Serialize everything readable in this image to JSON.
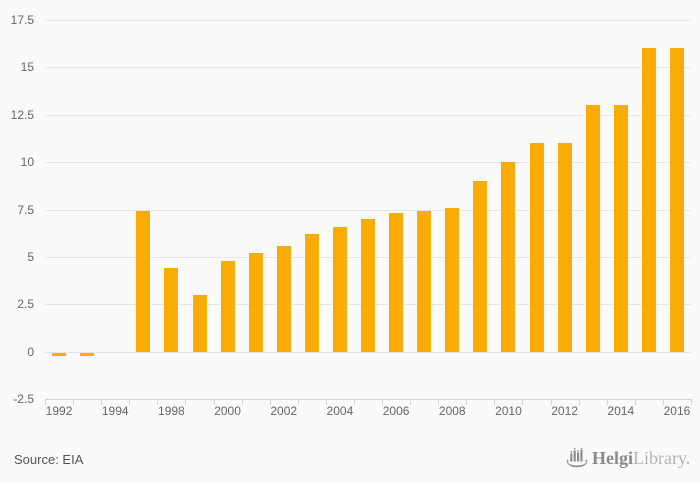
{
  "chart_data": {
    "type": "bar",
    "title": "",
    "categories": [
      "1992",
      "1993",
      "1994",
      "1995",
      "1998",
      "1999",
      "2000",
      "2001",
      "2002",
      "2003",
      "2004",
      "2005",
      "2006",
      "2007",
      "2008",
      "2009",
      "2010",
      "2011",
      "2012",
      "2013",
      "2014",
      "2015",
      "2016"
    ],
    "values": [
      -0.1,
      -0.1,
      0,
      7.4,
      4.4,
      3.0,
      4.8,
      5.2,
      5.6,
      6.2,
      6.6,
      7.0,
      7.3,
      7.4,
      7.6,
      9.0,
      10.0,
      11.0,
      11.0,
      13.0,
      13.0,
      16.0,
      16.0
    ],
    "ylim": [
      -2.5,
      17.5
    ],
    "y_tick_step": 2.5,
    "y_tick_labels": [
      "17.5",
      "15",
      "12.5",
      "10",
      "7.5",
      "5",
      "2.5",
      "0",
      "-2.5"
    ],
    "x_tick_labels_visible": [
      "1992",
      "1994",
      "1998",
      "2000",
      "2002",
      "2004",
      "2006",
      "2008",
      "2010",
      "2012",
      "2014",
      "2016"
    ],
    "grid": true,
    "legend": false,
    "xlabel": "",
    "ylabel": "",
    "bar_color": "#f9ab06",
    "grid_color": "#e6e6e6",
    "axis_line_color": "#ccd6eb",
    "label_color": "#666666",
    "background": "#fafafa"
  },
  "footer": {
    "source": "Source: EIA"
  },
  "branding": {
    "icon": "helgi-ship-icon",
    "name_primary": "Helgi",
    "name_secondary": "Library."
  }
}
